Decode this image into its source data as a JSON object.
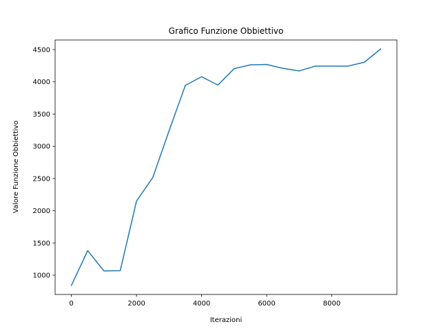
{
  "chart_data": {
    "type": "line",
    "title": "Grafico Funzione Obbiettivo",
    "xlabel": "Iterazioni",
    "ylabel": "Valore Funzione Obbiettivo",
    "xlim": [
      -500,
      10000
    ],
    "ylim": [
      700,
      4650
    ],
    "x_ticks": [
      0,
      2000,
      4000,
      6000,
      8000
    ],
    "y_ticks": [
      1000,
      1500,
      2000,
      2500,
      3000,
      3500,
      4000,
      4500
    ],
    "grid": false,
    "series": [
      {
        "color": "#1f77b4",
        "x": [
          0,
          500,
          1000,
          1500,
          2000,
          2500,
          3000,
          3500,
          4000,
          4500,
          5000,
          5500,
          6000,
          6500,
          7000,
          7500,
          8000,
          8500,
          9000,
          9500
        ],
        "y": [
          840,
          1380,
          1065,
          1070,
          2150,
          2515,
          3240,
          3945,
          4080,
          3950,
          4205,
          4265,
          4270,
          4210,
          4170,
          4245,
          4245,
          4245,
          4305,
          4510
        ]
      }
    ]
  }
}
